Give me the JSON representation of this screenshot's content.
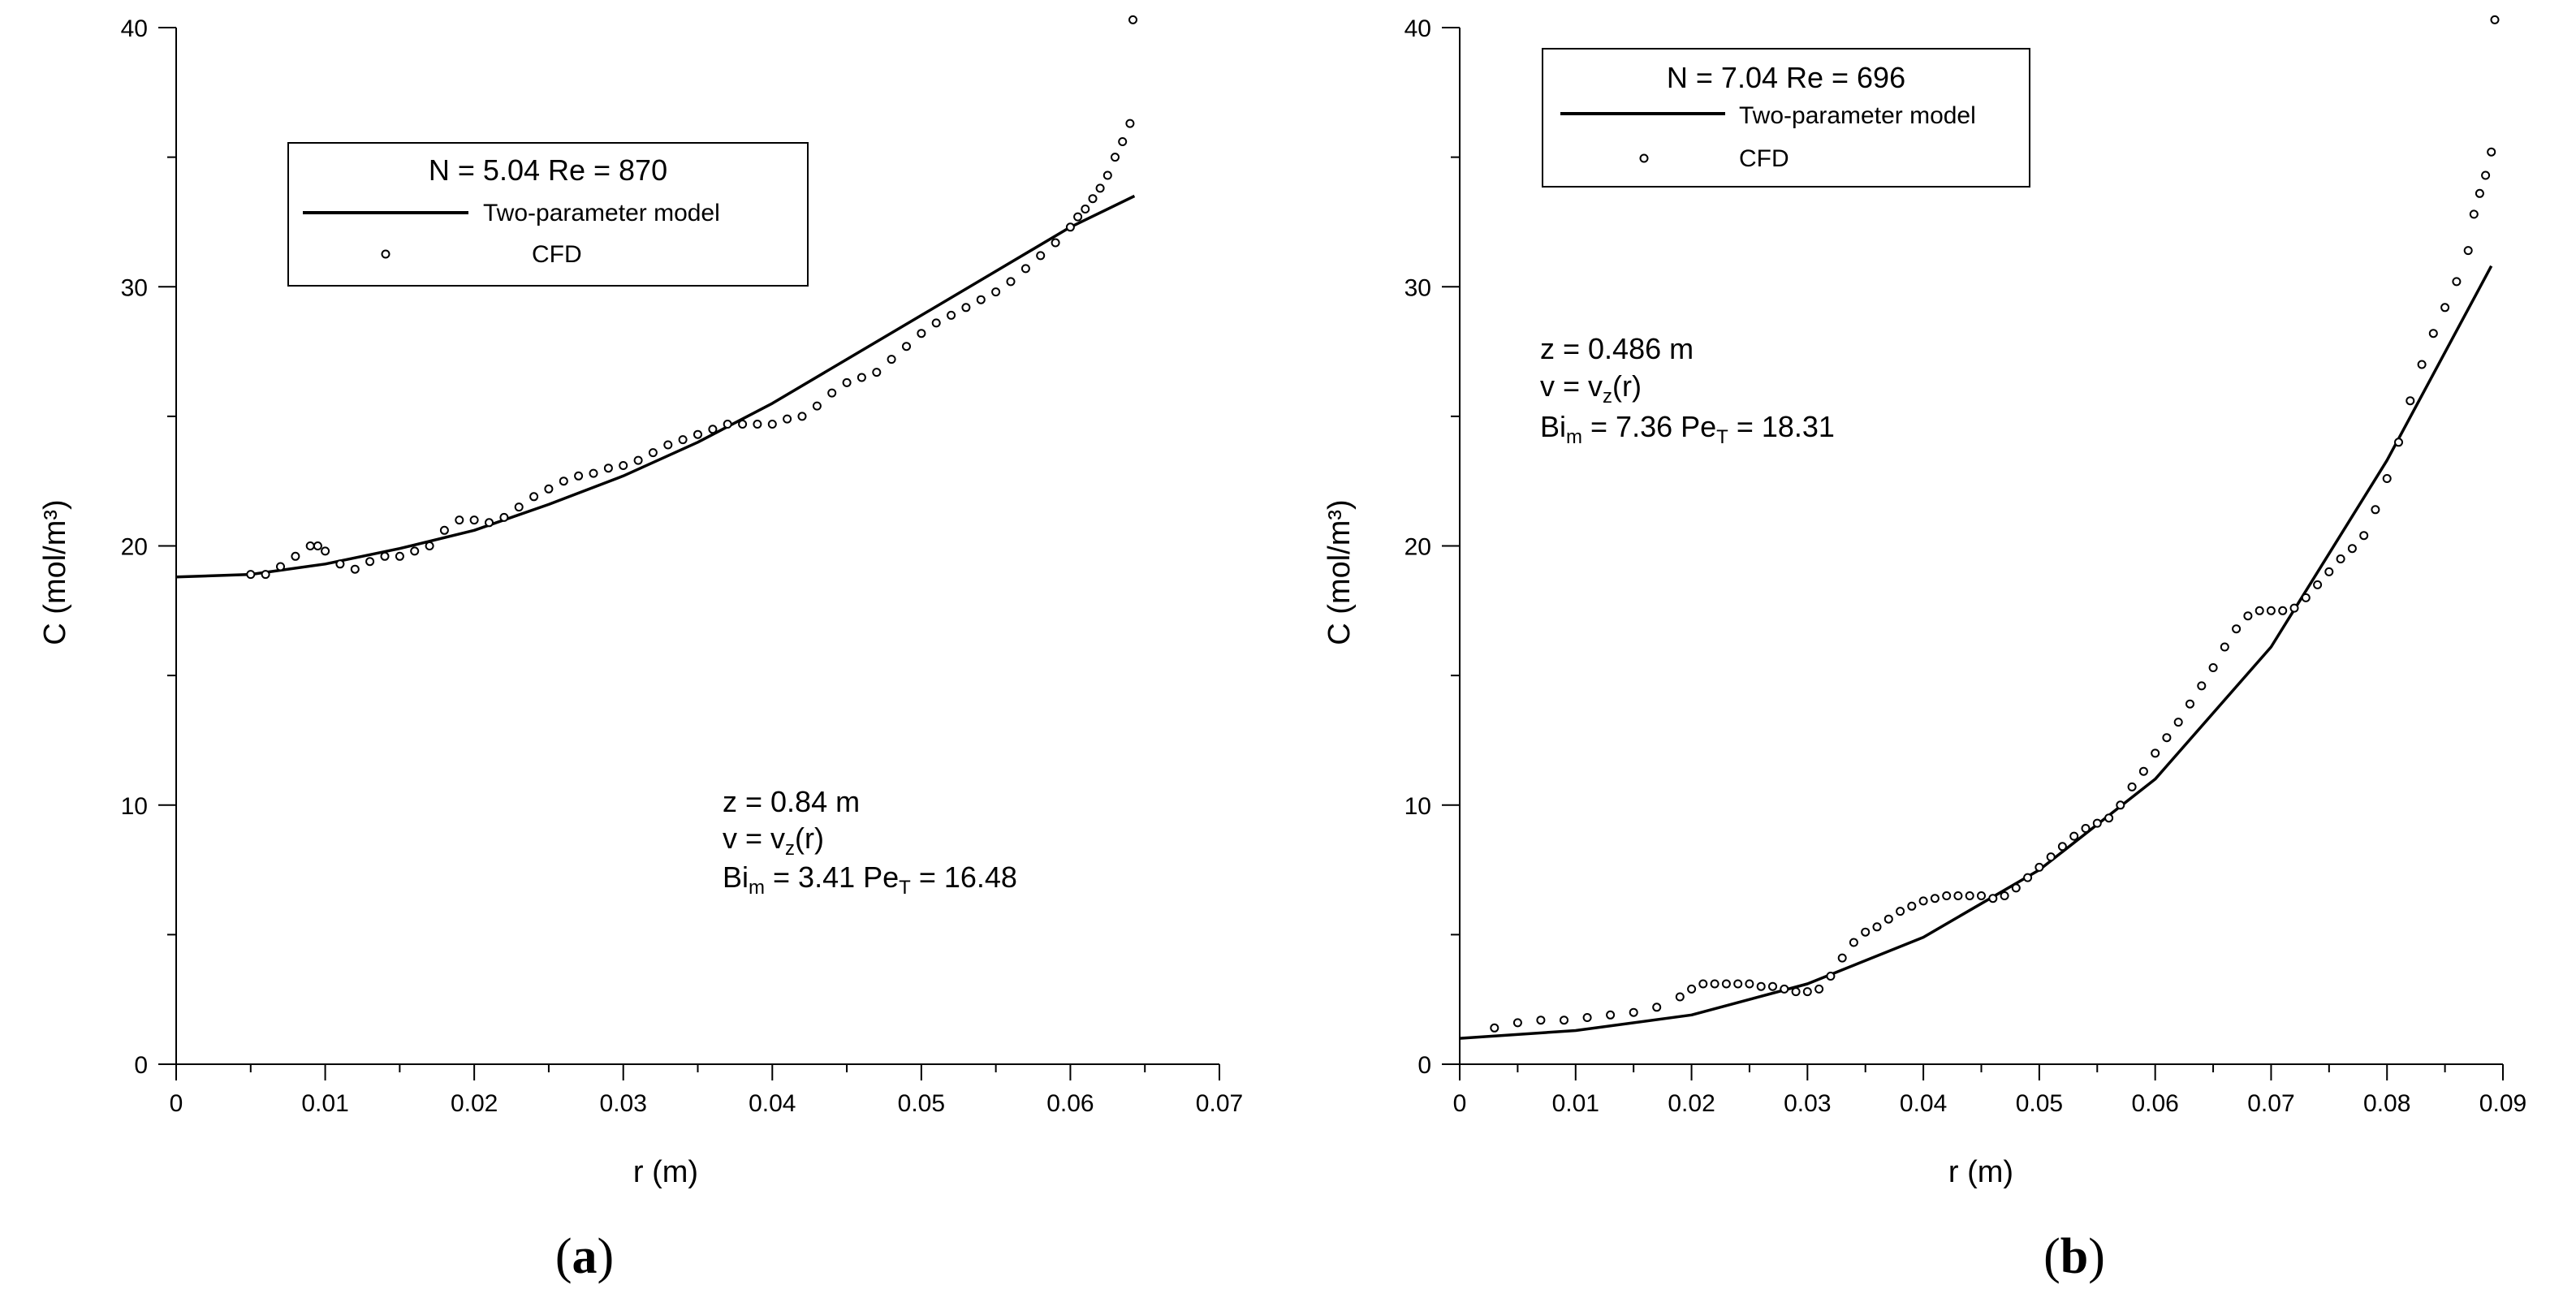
{
  "chart_data": [
    {
      "type": "line",
      "panel_label": "a",
      "xlabel": "r (m)",
      "ylabel": "C (mol/m³)",
      "xlim": [
        0,
        0.07
      ],
      "ylim": [
        0,
        40
      ],
      "xticks": [
        0,
        0.01,
        0.02,
        0.03,
        0.04,
        0.05,
        0.06,
        0.07
      ],
      "xtick_labels": [
        "0",
        "0.01",
        "0.02",
        "0.03",
        "0.04",
        "0.05",
        "0.06",
        "0.07"
      ],
      "yticks": [
        0,
        10,
        20,
        30,
        40
      ],
      "ytick_labels": [
        "0",
        "10",
        "20",
        "30",
        "40"
      ],
      "legend": {
        "title": "N = 5.04  Re = 870",
        "entries": [
          "Two-parameter model",
          "CFD"
        ]
      },
      "annotation": {
        "z": "z = 0.84 m",
        "v_pre": "v = v",
        "v_sub": "z",
        "v_post": "(r)",
        "bi_pre": "Bi",
        "bi_sub": "m",
        "bi_val": " = 3.41  Pe",
        "pe_sub": "T",
        "pe_val": " = 16.48"
      },
      "series": [
        {
          "name": "Two-parameter model",
          "style": "line",
          "x": [
            0,
            0.005,
            0.01,
            0.015,
            0.02,
            0.025,
            0.03,
            0.035,
            0.04,
            0.045,
            0.05,
            0.055,
            0.06,
            0.0643
          ],
          "y": [
            18.8,
            18.9,
            19.3,
            19.9,
            20.6,
            21.6,
            22.7,
            24.0,
            25.5,
            27.2,
            28.9,
            30.6,
            32.3,
            33.5
          ]
        },
        {
          "name": "CFD",
          "style": "markers",
          "x": [
            0.005,
            0.006,
            0.007,
            0.008,
            0.009,
            0.0095,
            0.01,
            0.011,
            0.012,
            0.013,
            0.014,
            0.015,
            0.016,
            0.017,
            0.018,
            0.019,
            0.02,
            0.021,
            0.022,
            0.023,
            0.024,
            0.025,
            0.026,
            0.027,
            0.028,
            0.029,
            0.03,
            0.031,
            0.032,
            0.033,
            0.034,
            0.035,
            0.036,
            0.037,
            0.038,
            0.039,
            0.04,
            0.041,
            0.042,
            0.043,
            0.044,
            0.045,
            0.046,
            0.047,
            0.048,
            0.049,
            0.05,
            0.051,
            0.052,
            0.053,
            0.054,
            0.055,
            0.056,
            0.057,
            0.058,
            0.059,
            0.06,
            0.0605,
            0.061,
            0.0615,
            0.062,
            0.0625,
            0.063,
            0.0635,
            0.064,
            0.0642
          ],
          "y": [
            18.9,
            18.9,
            19.2,
            19.6,
            20.0,
            20.0,
            19.8,
            19.3,
            19.1,
            19.4,
            19.6,
            19.6,
            19.8,
            20.0,
            20.6,
            21.0,
            21.0,
            20.9,
            21.1,
            21.5,
            21.9,
            22.2,
            22.5,
            22.7,
            22.8,
            23.0,
            23.1,
            23.3,
            23.6,
            23.9,
            24.1,
            24.3,
            24.5,
            24.7,
            24.7,
            24.7,
            24.7,
            24.9,
            25.0,
            25.4,
            25.9,
            26.3,
            26.5,
            26.7,
            27.2,
            27.7,
            28.2,
            28.6,
            28.9,
            29.2,
            29.5,
            29.8,
            30.2,
            30.7,
            31.2,
            31.7,
            32.3,
            32.7,
            33.0,
            33.4,
            33.8,
            34.3,
            35.0,
            35.6,
            36.3,
            40.3
          ]
        }
      ]
    },
    {
      "type": "line",
      "panel_label": "b",
      "xlabel": "r (m)",
      "ylabel": "C (mol/m³)",
      "xlim": [
        0,
        0.09
      ],
      "ylim": [
        0,
        40
      ],
      "xticks": [
        0,
        0.01,
        0.02,
        0.03,
        0.04,
        0.05,
        0.06,
        0.07,
        0.08,
        0.09
      ],
      "xtick_labels": [
        "0",
        "0.01",
        "0.02",
        "0.03",
        "0.04",
        "0.05",
        "0.06",
        "0.07",
        "0.08",
        "0.09"
      ],
      "yticks": [
        0,
        10,
        20,
        30,
        40
      ],
      "ytick_labels": [
        "0",
        "10",
        "20",
        "30",
        "40"
      ],
      "legend": {
        "title": "N = 7.04  Re = 696",
        "entries": [
          "Two-parameter model",
          "CFD"
        ]
      },
      "annotation": {
        "z": "z = 0.486 m",
        "v_pre": "v = v",
        "v_sub": "z",
        "v_post": "(r)",
        "bi_pre": "Bi",
        "bi_sub": "m",
        "bi_val": " = 7.36  Pe",
        "pe_sub": "T",
        "pe_val": " = 18.31"
      },
      "series": [
        {
          "name": "Two-parameter model",
          "style": "line",
          "x": [
            0,
            0.01,
            0.02,
            0.03,
            0.04,
            0.05,
            0.06,
            0.07,
            0.08,
            0.089
          ],
          "y": [
            1.0,
            1.3,
            1.9,
            3.1,
            4.9,
            7.5,
            11.0,
            16.1,
            23.3,
            30.8
          ]
        },
        {
          "name": "CFD",
          "style": "markers",
          "x": [
            0.003,
            0.005,
            0.007,
            0.009,
            0.011,
            0.013,
            0.015,
            0.017,
            0.019,
            0.02,
            0.021,
            0.022,
            0.023,
            0.024,
            0.025,
            0.026,
            0.027,
            0.028,
            0.029,
            0.03,
            0.031,
            0.032,
            0.033,
            0.034,
            0.035,
            0.036,
            0.037,
            0.038,
            0.039,
            0.04,
            0.041,
            0.042,
            0.043,
            0.044,
            0.045,
            0.046,
            0.047,
            0.048,
            0.049,
            0.05,
            0.051,
            0.052,
            0.053,
            0.054,
            0.055,
            0.056,
            0.057,
            0.058,
            0.059,
            0.06,
            0.061,
            0.062,
            0.063,
            0.064,
            0.065,
            0.066,
            0.067,
            0.068,
            0.069,
            0.07,
            0.071,
            0.072,
            0.073,
            0.074,
            0.075,
            0.076,
            0.077,
            0.078,
            0.079,
            0.08,
            0.081,
            0.082,
            0.083,
            0.084,
            0.085,
            0.086,
            0.087,
            0.0875,
            0.088,
            0.0885,
            0.089,
            0.0893
          ],
          "y": [
            1.4,
            1.6,
            1.7,
            1.7,
            1.8,
            1.9,
            2.0,
            2.2,
            2.6,
            2.9,
            3.1,
            3.1,
            3.1,
            3.1,
            3.1,
            3.0,
            3.0,
            2.9,
            2.8,
            2.8,
            2.9,
            3.4,
            4.1,
            4.7,
            5.1,
            5.3,
            5.6,
            5.9,
            6.1,
            6.3,
            6.4,
            6.5,
            6.5,
            6.5,
            6.5,
            6.4,
            6.5,
            6.8,
            7.2,
            7.6,
            8.0,
            8.4,
            8.8,
            9.1,
            9.3,
            9.5,
            10.0,
            10.7,
            11.3,
            12.0,
            12.6,
            13.2,
            13.9,
            14.6,
            15.3,
            16.1,
            16.8,
            17.3,
            17.5,
            17.5,
            17.5,
            17.6,
            18.0,
            18.5,
            19.0,
            19.5,
            19.9,
            20.4,
            21.4,
            22.6,
            24.0,
            25.6,
            27.0,
            28.2,
            29.2,
            30.2,
            31.4,
            32.8,
            33.6,
            34.3,
            35.2,
            40.3
          ]
        }
      ]
    }
  ]
}
